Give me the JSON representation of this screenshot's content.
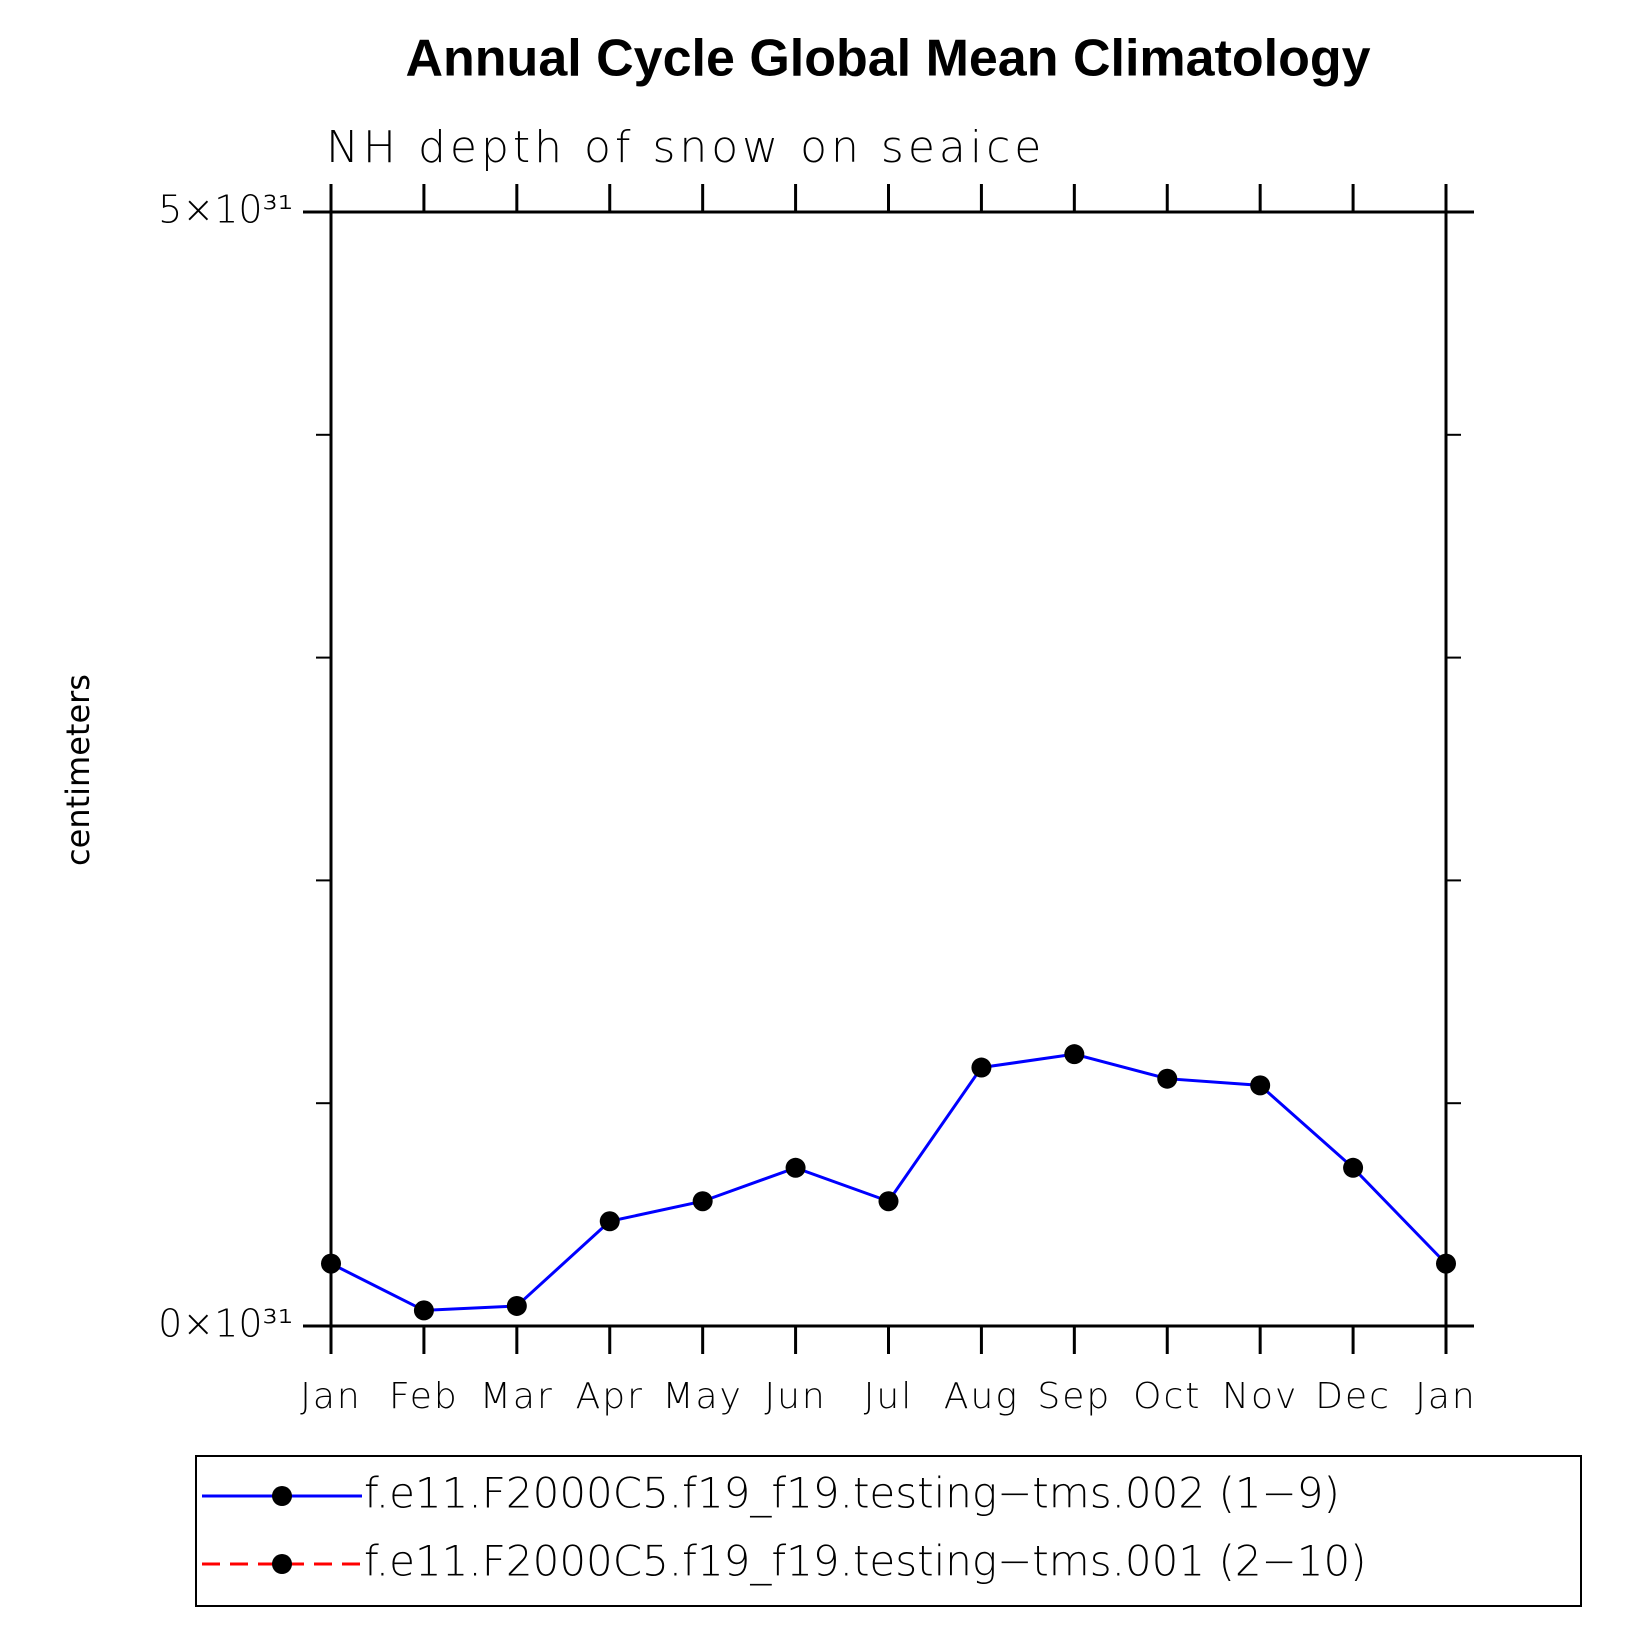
{
  "chart_data": {
    "type": "line",
    "title": "Annual Cycle Global Mean Climatology",
    "subtitle": "NH depth of snow on seaice",
    "y_label": "centimeters",
    "categories": [
      "Jan",
      "Feb",
      "Mar",
      "Apr",
      "May",
      "Jun",
      "Jul",
      "Aug",
      "Sep",
      "Oct",
      "Nov",
      "Dec",
      "Jan"
    ],
    "series": [
      {
        "name": "f.e11.F2000C5.f19_f19.testing−tms.002 (1−9)",
        "color": "#0000ff",
        "dash": "solid",
        "values": [
          2.8e+30,
          7e+29,
          9e+29,
          4.7e+30,
          5.6e+30,
          7.1e+30,
          5.6e+30,
          1.16e+31,
          1.22e+31,
          1.11e+31,
          1.08e+31,
          7.1e+30,
          2.8e+30
        ]
      },
      {
        "name": "f.e11.F2000C5.f19_f19.testing−tms.001 (2−10)",
        "color": "#ff0000",
        "dash": "dashed",
        "values": [
          null,
          null,
          null,
          null,
          null,
          null,
          null,
          null,
          null,
          null,
          null,
          null,
          null
        ]
      }
    ],
    "ylim": [
      0,
      5e+31
    ],
    "yticks": [
      {
        "value": 0,
        "label": "0×10³¹"
      },
      {
        "value": 5e+31,
        "label": "5×10³¹"
      }
    ],
    "yminor_ticks": [
      1e+31,
      2e+31,
      3e+31,
      4e+31
    ],
    "marker_color": "#000000"
  }
}
